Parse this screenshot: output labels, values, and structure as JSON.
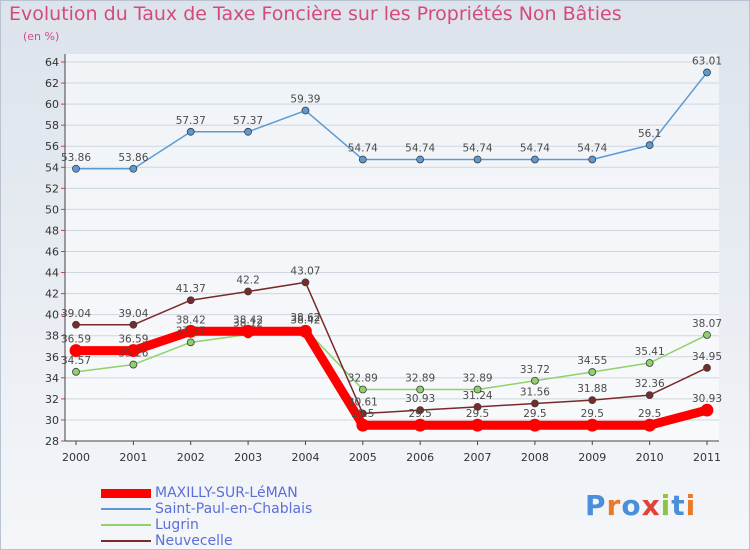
{
  "page": {
    "title": "Evolution du Taux de Taxe Foncière sur les Propriétés Non Bâties",
    "subtitle": "(en %)",
    "logo_text": "Proxiti"
  },
  "chart_data": {
    "type": "line",
    "title": "Evolution du Taux de Taxe Foncière sur les Propriétés Non Bâties",
    "ylabel": "(en %)",
    "xlabel": "",
    "x": [
      "2000",
      "2001",
      "2002",
      "2003",
      "2004",
      "2005",
      "2006",
      "2007",
      "2008",
      "2009",
      "2010",
      "2011"
    ],
    "ylim": [
      28,
      64
    ],
    "yticks": [
      28,
      30,
      32,
      34,
      36,
      38,
      40,
      42,
      44,
      46,
      48,
      50,
      52,
      54,
      56,
      58,
      60,
      62,
      64
    ],
    "grid": "horizontal",
    "legend_position": "bottom-left",
    "series": [
      {
        "name": "MAXILLY-SUR-LéMAN",
        "color": "#ff0000",
        "values": [
          36.59,
          36.59,
          38.42,
          38.42,
          38.42,
          29.5,
          29.5,
          29.5,
          29.5,
          29.5,
          29.5,
          30.93
        ],
        "labels": [
          "36.59",
          "36.59",
          "38.42",
          "38.42",
          "38.42",
          "29.5",
          "29.5",
          "29.5",
          "29.5",
          "29.5",
          "29.5",
          "30.93"
        ]
      },
      {
        "name": "Saint-Paul-en-Chablais",
        "color": "#5b9bd5",
        "values": [
          53.86,
          53.86,
          57.37,
          57.37,
          59.39,
          54.74,
          54.74,
          54.74,
          54.74,
          54.74,
          56.1,
          63.01
        ],
        "labels": [
          "53.86",
          "53.86",
          "57.37",
          "57.37",
          "59.39",
          "54.74",
          "54.74",
          "54.74",
          "54.74",
          "54.74",
          "56.1",
          "63.01"
        ]
      },
      {
        "name": "Lugrin",
        "color": "#8fd16b",
        "values": [
          34.57,
          35.26,
          37.37,
          38.12,
          38.62,
          32.89,
          32.89,
          32.89,
          33.72,
          34.55,
          35.41,
          38.07
        ],
        "labels": [
          "34.57",
          "35.26",
          "37.37",
          "38.12",
          "38.62",
          "32.89",
          "32.89",
          "32.89",
          "33.72",
          "34.55",
          "35.41",
          "38.07"
        ]
      },
      {
        "name": "Neuvecelle",
        "color": "#7a2a2a",
        "values": [
          39.04,
          39.04,
          41.37,
          42.2,
          43.07,
          30.61,
          30.93,
          31.24,
          31.56,
          31.88,
          32.36,
          34.95
        ],
        "labels": [
          "39.04",
          "39.04",
          "41.37",
          "42.2",
          "43.07",
          "30.61",
          "30.93",
          "31.24",
          "31.56",
          "31.88",
          "32.36",
          "34.95"
        ]
      }
    ]
  }
}
